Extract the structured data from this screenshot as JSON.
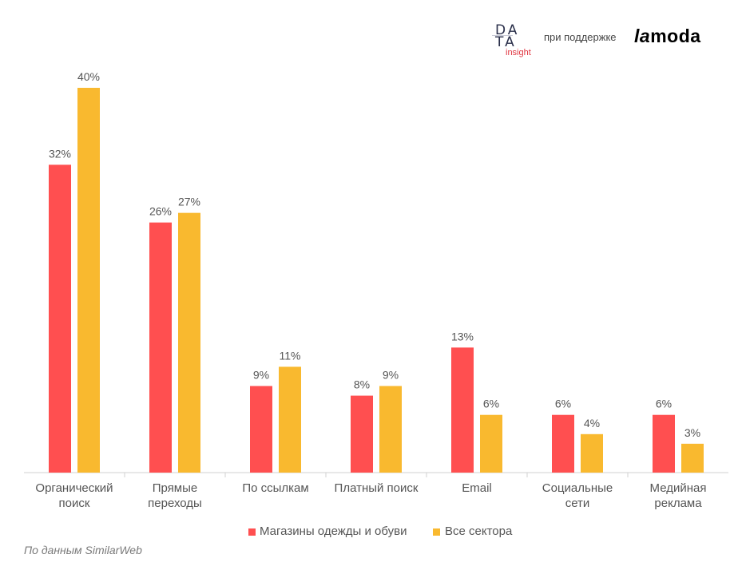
{
  "header": {
    "data_logo_line1": "DA",
    "data_logo_line2": "TA",
    "data_logo_line3": "insight",
    "support_text": "при поддержке",
    "lamoda_la": "la",
    "lamoda_moda": "moda"
  },
  "chart_data": {
    "type": "bar",
    "categories": [
      [
        "Органический",
        "поиск"
      ],
      [
        "Прямые",
        "переходы"
      ],
      [
        "По ссылкам"
      ],
      [
        "Платный поиск"
      ],
      [
        "Email"
      ],
      [
        "Социальные",
        "сети"
      ],
      [
        "Медийная",
        "реклама"
      ]
    ],
    "series": [
      {
        "name": "Магазины одежды и обуви",
        "values": [
          32,
          26,
          9,
          8,
          13,
          6,
          6
        ],
        "labels": [
          "32%",
          "26%",
          "9%",
          "8%",
          "13%",
          "6%",
          "6%"
        ],
        "color": "#ff4f50"
      },
      {
        "name": "Все сектора",
        "values": [
          40,
          27,
          11,
          9,
          6,
          4,
          3
        ],
        "labels": [
          "40%",
          "27%",
          "11%",
          "9%",
          "6%",
          "4%",
          "3%"
        ],
        "color": "#f9b92f"
      }
    ],
    "ylim": [
      0,
      40
    ],
    "grid": false,
    "legend_position": "bottom"
  },
  "source_note": "По данным SimilarWeb"
}
